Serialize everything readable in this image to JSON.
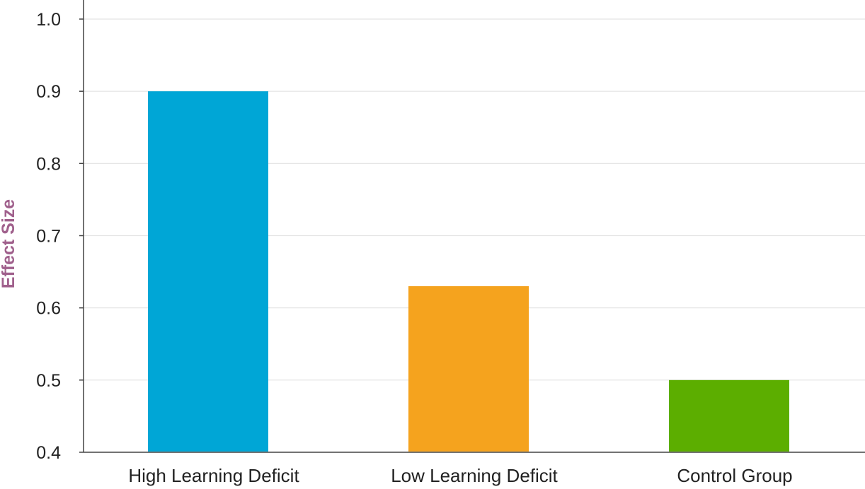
{
  "chart_data": {
    "type": "bar",
    "title": "",
    "xlabel": "",
    "ylabel": "Effect Size",
    "categories": [
      "High Learning Deficit",
      "Low Learning Deficit",
      "Control Group"
    ],
    "values": [
      0.9,
      0.63,
      0.5
    ],
    "colors": [
      "#00a6d6",
      "#f5a31e",
      "#5cae00"
    ],
    "ylim": [
      0.4,
      1.0
    ],
    "yticks": [
      "0.4",
      "0.5",
      "0.6",
      "0.7",
      "0.8",
      "0.9",
      "1.0"
    ],
    "grid": true,
    "ylabel_color": "#a0608c"
  }
}
